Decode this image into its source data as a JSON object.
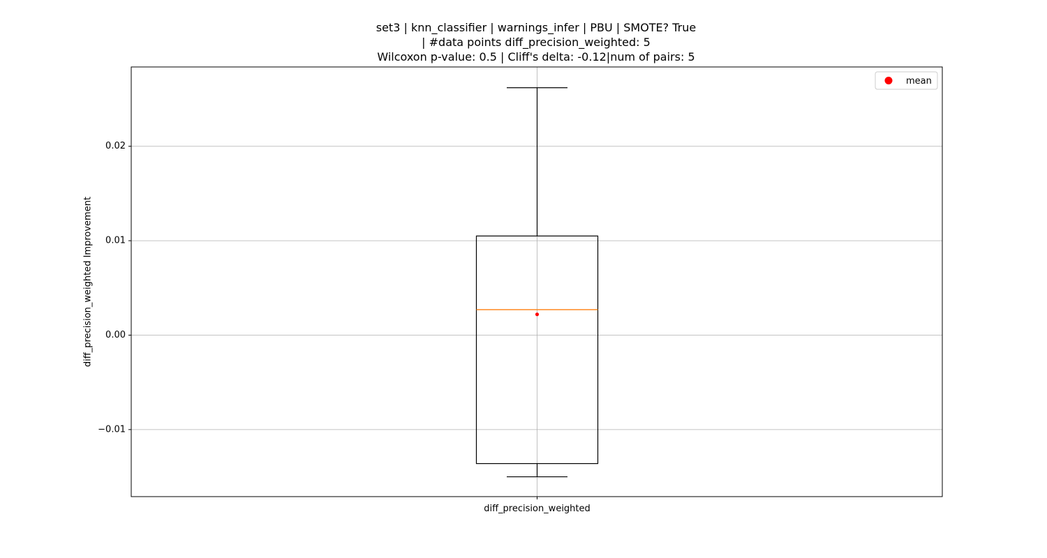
{
  "chart_data": {
    "type": "box",
    "title_lines": [
      "set3 | knn_classifier | warnings_infer | PBU | SMOTE? True",
      "| #data points diff_precision_weighted: 5",
      "Wilcoxon p-value: 0.5 | Cliff's delta: -0.12|num of pairs: 5"
    ],
    "xlabel": "diff_precision_weighted",
    "ylabel": "diff_precision_weighted Improvement",
    "categories": [
      "diff_precision_weighted"
    ],
    "ylim": [
      -0.0171,
      0.0284
    ],
    "yticks": [
      -0.01,
      0.0,
      0.01,
      0.02
    ],
    "ytick_labels": [
      "−0.01",
      "0.00",
      "0.01",
      "0.02"
    ],
    "grid": true,
    "box": {
      "whisker_low": -0.015,
      "q1": -0.0136,
      "median": 0.0027,
      "q3": 0.0105,
      "whisker_high": 0.0262,
      "mean": 0.0022
    },
    "legend": {
      "position": "top-right",
      "entries": [
        {
          "label": "mean",
          "marker": "circle",
          "color": "#ff0000"
        }
      ]
    },
    "colors": {
      "median": "#ff7f0e",
      "mean": "#ff0000",
      "box": "#000000",
      "grid": "#b0b0b0"
    }
  }
}
